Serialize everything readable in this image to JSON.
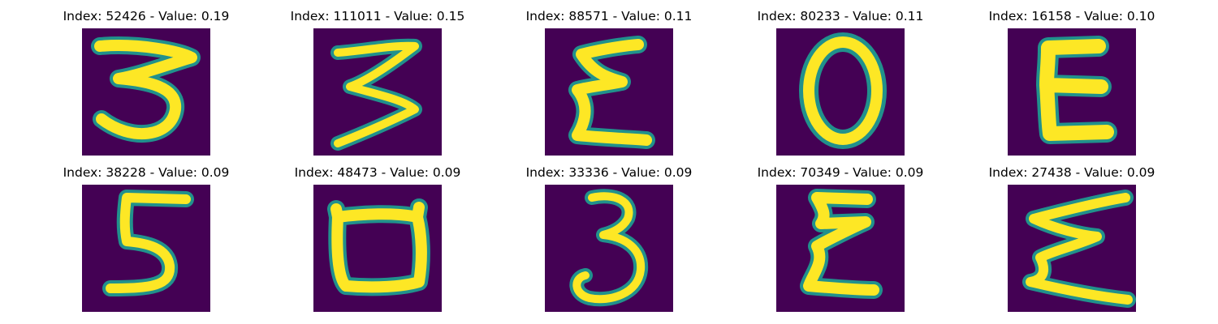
{
  "figure": {
    "background_color": "#440154",
    "stroke_color": "#fde725",
    "edge_color": "#21918c",
    "panels": [
      {
        "title": "Index: 52426 - Value: 0.19",
        "glyph": "3"
      },
      {
        "title": "Index: 111011 - Value: 0.15",
        "glyph": "3"
      },
      {
        "title": "Index: 88571 - Value: 0.11",
        "glyph": "epsilon"
      },
      {
        "title": "Index: 80233 - Value: 0.11",
        "glyph": "0"
      },
      {
        "title": "Index: 16158 - Value: 0.10",
        "glyph": "E"
      },
      {
        "title": "Index: 38228 - Value: 0.09",
        "glyph": "5"
      },
      {
        "title": "Index: 48473 - Value: 0.09",
        "glyph": "cup"
      },
      {
        "title": "Index: 33336 - Value: 0.09",
        "glyph": "3"
      },
      {
        "title": "Index: 70349 - Value: 0.09",
        "glyph": "epsilon"
      },
      {
        "title": "Index: 27438 - Value: 0.09",
        "glyph": "epsilon"
      }
    ]
  }
}
